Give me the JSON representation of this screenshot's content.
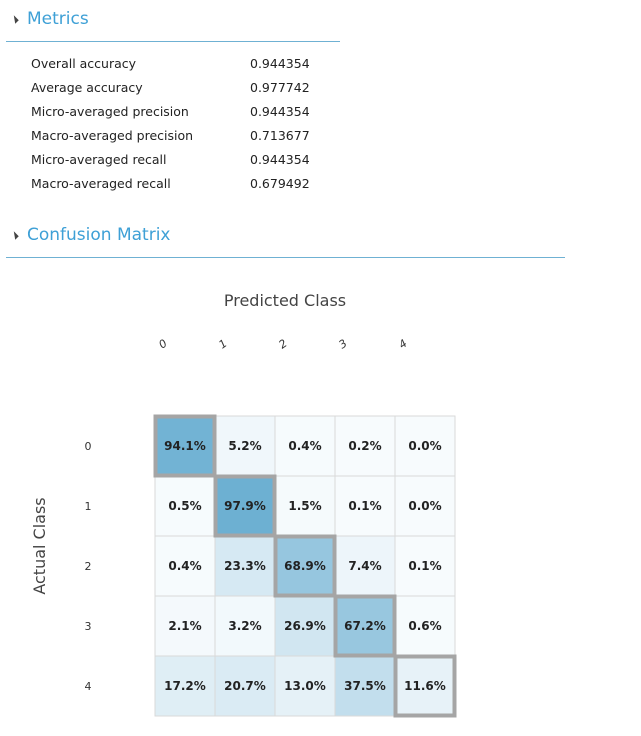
{
  "metrics_section": {
    "title": "Metrics",
    "rows": [
      {
        "label": "Overall accuracy",
        "value": "0.944354"
      },
      {
        "label": "Average accuracy",
        "value": "0.977742"
      },
      {
        "label": "Micro-averaged precision",
        "value": "0.944354"
      },
      {
        "label": "Macro-averaged precision",
        "value": "0.713677"
      },
      {
        "label": "Micro-averaged recall",
        "value": "0.944354"
      },
      {
        "label": "Macro-averaged recall",
        "value": "0.679492"
      }
    ]
  },
  "confusion_section": {
    "title": "Confusion Matrix"
  },
  "colors": {
    "accent": "#3ea0d6",
    "diagonal_border": "#a5a5a5",
    "cell_border": "#d9d9d9",
    "low": "#f7fbfd",
    "high": "#6aaed1"
  },
  "chart_data": {
    "type": "heatmap",
    "title": "Predicted Class",
    "xlabel": "Predicted Class",
    "ylabel": "Actual Class",
    "x_ticks": [
      "0",
      "1",
      "2",
      "3",
      "4"
    ],
    "y_ticks": [
      "0",
      "1",
      "2",
      "3",
      "4"
    ],
    "values": [
      [
        94.1,
        5.2,
        0.4,
        0.2,
        0.0
      ],
      [
        0.5,
        97.9,
        1.5,
        0.1,
        0.0
      ],
      [
        0.4,
        23.3,
        68.9,
        7.4,
        0.1
      ],
      [
        2.1,
        3.2,
        26.9,
        67.2,
        0.6
      ],
      [
        17.2,
        20.7,
        13.0,
        37.5,
        11.6
      ]
    ],
    "value_labels": [
      [
        "94.1%",
        "5.2%",
        "0.4%",
        "0.2%",
        "0.0%"
      ],
      [
        "0.5%",
        "97.9%",
        "1.5%",
        "0.1%",
        "0.0%"
      ],
      [
        "0.4%",
        "23.3%",
        "68.9%",
        "7.4%",
        "0.1%"
      ],
      [
        "2.1%",
        "3.2%",
        "26.9%",
        "67.2%",
        "0.6%"
      ],
      [
        "17.2%",
        "20.7%",
        "13.0%",
        "37.5%",
        "11.6%"
      ]
    ],
    "value_range": [
      0,
      100
    ],
    "diagonal_highlight": true
  }
}
